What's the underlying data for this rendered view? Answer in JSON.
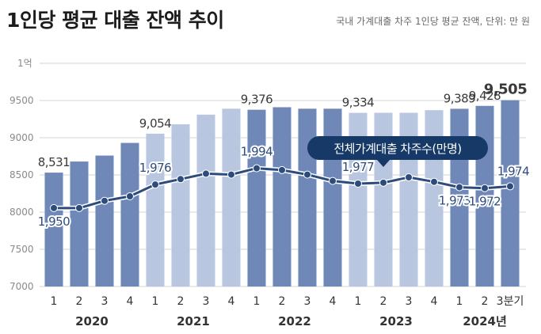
{
  "title": "1인당 평균 대출 잔액 추이",
  "subtitle": "국내 가계대출 차주 1인당 평균 잔액, 단위: 만 원",
  "chart_data": {
    "type": "bar",
    "title": "1인당 평균 대출 잔액 추이",
    "subtitle": "국내 가계대출 차주 1인당 평균 잔액, 단위: 만 원",
    "unit": "만 원",
    "categories": [
      "1",
      "2",
      "3",
      "4",
      "1",
      "2",
      "3",
      "4",
      "1",
      "2",
      "3",
      "4",
      "1",
      "2",
      "3",
      "4",
      "1",
      "2",
      "3분기"
    ],
    "year_labels": [
      {
        "label": "2020",
        "start": 0,
        "end": 3
      },
      {
        "label": "2021",
        "start": 4,
        "end": 7
      },
      {
        "label": "2022",
        "start": 8,
        "end": 11
      },
      {
        "label": "2023",
        "start": 12,
        "end": 15
      },
      {
        "label": "2024년",
        "start": 16,
        "end": 18
      }
    ],
    "ylim": [
      7000,
      10000
    ],
    "y_ticks": [
      7000,
      7500,
      8000,
      8500,
      9000,
      9500
    ],
    "y_top_label": "1억",
    "series": [
      {
        "name": "",
        "type": "bar",
        "values": [
          8531,
          8680,
          8760,
          8930,
          9054,
          9180,
          9310,
          9390,
          9376,
          9410,
          9390,
          9390,
          9334,
          9335,
          9335,
          9370,
          9389,
          9428,
          9505
        ],
        "labels": {
          "0": "8,531",
          "4": "9,054",
          "8": "9,376",
          "12": "9,334",
          "16": "9,389",
          "17": "9,428",
          "18": "9,505"
        }
      },
      {
        "name": "전체가계대출 차주수(만명)",
        "type": "line",
        "values": [
          1950,
          1950,
          1958,
          1963,
          1976,
          1982,
          1988,
          1987,
          1994,
          1992,
          1987,
          1980,
          1977,
          1978,
          1984,
          1979,
          1973,
          1972,
          1974
        ],
        "labels": {
          "0": "1,950",
          "4": "1,976",
          "8": "1,994",
          "12": "1,977",
          "16": "1,973",
          "17": "1,972",
          "18": "1,974"
        }
      }
    ],
    "colors": {
      "bar_by_year": [
        "#6f88b8",
        "#b9c6df",
        "#6f88b8",
        "#b9c6df",
        "#6f88b8"
      ],
      "line": "#2d4c7e",
      "callout": "#163968",
      "grid": "#d6d6d6",
      "axis_text": "#8a8a8a",
      "label_text": "#3a3a3a"
    }
  }
}
